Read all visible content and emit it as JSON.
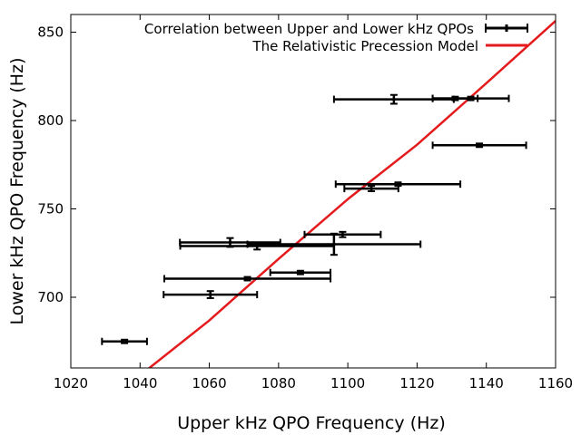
{
  "chart_data": {
    "type": "scatter",
    "title": "",
    "xlabel": "Upper kHz QPO Frequency (Hz)",
    "ylabel": "Lower kHz QPO Frequency (Hz)",
    "xlim": [
      1020,
      1160
    ],
    "ylim": [
      660,
      860
    ],
    "xticks": [
      1020,
      1040,
      1060,
      1080,
      1100,
      1120,
      1140,
      1160
    ],
    "yticks": [
      700,
      750,
      800,
      850
    ],
    "grid": false,
    "legend_position": "top-right",
    "series": [
      {
        "name": "Correlation between Upper and Lower kHz QPOs",
        "kind": "errorbar",
        "color": "#000000",
        "points": [
          {
            "x": 1035.5,
            "y": 675,
            "xerr": 6.5,
            "yerr": 1
          },
          {
            "x": 1060.3,
            "y": 701.5,
            "xerr": 13.5,
            "yerr": 2
          },
          {
            "x": 1071,
            "y": 710.5,
            "xerr": 24,
            "yerr": 1
          },
          {
            "x": 1086.3,
            "y": 714,
            "xerr": 8.7,
            "yerr": 1
          },
          {
            "x": 1066,
            "y": 731,
            "xerr": 14.5,
            "yerr": 2.5
          },
          {
            "x": 1073.8,
            "y": 729,
            "xerr": 22.2,
            "yerr": 2
          },
          {
            "x": 1096,
            "y": 730,
            "xerr": 25,
            "yerr": 6
          },
          {
            "x": 1098.5,
            "y": 735.5,
            "xerr": 11,
            "yerr": 1.5
          },
          {
            "x": 1106.8,
            "y": 761.5,
            "xerr": 7.8,
            "yerr": 1.5
          },
          {
            "x": 1114.5,
            "y": 764,
            "xerr": 18,
            "yerr": 1
          },
          {
            "x": 1113.3,
            "y": 812,
            "xerr": 17.3,
            "yerr": 2.5
          },
          {
            "x": 1131,
            "y": 812.5,
            "xerr": 6.5,
            "yerr": 1
          },
          {
            "x": 1135.5,
            "y": 812.5,
            "xerr": 11,
            "yerr": 1
          },
          {
            "x": 1138,
            "y": 786,
            "xerr": 13.5,
            "yerr": 1
          }
        ]
      },
      {
        "name": "The Relativistic Precession Model",
        "kind": "line",
        "color": "#e41a1c",
        "x": [
          1028.6,
          1040,
          1060,
          1080,
          1100,
          1120,
          1140,
          1160
        ],
        "y": [
          641,
          655.8,
          686.9,
          721.7,
          755.5,
          786.3,
          821.1,
          856.4
        ]
      }
    ]
  }
}
